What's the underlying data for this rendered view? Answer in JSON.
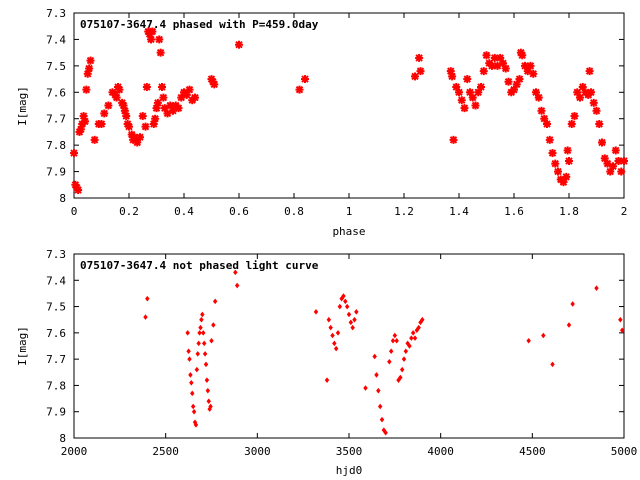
{
  "chart_data": [
    {
      "type": "scatter",
      "title": "075107-3647.4 phased with P=459.0day",
      "xlabel": "phase",
      "ylabel": "I[mag]",
      "xlim": [
        0,
        2
      ],
      "ylim": [
        8,
        7.3
      ],
      "y_inverted": true,
      "xticks": [
        "0",
        "0.2",
        "0.4",
        "0.6",
        "0.8",
        "1",
        "1.2",
        "1.4",
        "1.6",
        "1.8",
        "2"
      ],
      "yticks": [
        "7.3",
        "7.4",
        "7.5",
        "7.6",
        "7.7",
        "7.8",
        "7.9",
        "8"
      ],
      "marker_color": "#ff0000",
      "marker": "star",
      "grid": false,
      "series": [
        {
          "points": [
            [
              0.0,
              7.83
            ],
            [
              0.005,
              7.95
            ],
            [
              0.01,
              7.96
            ],
            [
              0.015,
              7.97
            ],
            [
              0.02,
              7.75
            ],
            [
              0.025,
              7.74
            ],
            [
              0.03,
              7.72
            ],
            [
              0.035,
              7.69
            ],
            [
              0.04,
              7.71
            ],
            [
              0.045,
              7.59
            ],
            [
              0.05,
              7.53
            ],
            [
              0.055,
              7.51
            ],
            [
              0.06,
              7.48
            ],
            [
              0.075,
              7.78
            ],
            [
              0.09,
              7.72
            ],
            [
              0.1,
              7.72
            ],
            [
              0.11,
              7.68
            ],
            [
              0.125,
              7.65
            ],
            [
              0.14,
              7.6
            ],
            [
              0.15,
              7.61
            ],
            [
              0.155,
              7.62
            ],
            [
              0.16,
              7.58
            ],
            [
              0.165,
              7.59
            ],
            [
              0.175,
              7.64
            ],
            [
              0.18,
              7.65
            ],
            [
              0.185,
              7.67
            ],
            [
              0.19,
              7.69
            ],
            [
              0.195,
              7.72
            ],
            [
              0.2,
              7.73
            ],
            [
              0.21,
              7.76
            ],
            [
              0.215,
              7.78
            ],
            [
              0.22,
              7.77
            ],
            [
              0.225,
              7.78
            ],
            [
              0.23,
              7.79
            ],
            [
              0.24,
              7.77
            ],
            [
              0.25,
              7.69
            ],
            [
              0.26,
              7.73
            ],
            [
              0.265,
              7.58
            ],
            [
              0.27,
              7.37
            ],
            [
              0.275,
              7.38
            ],
            [
              0.28,
              7.4
            ],
            [
              0.285,
              7.37
            ],
            [
              0.29,
              7.72
            ],
            [
              0.295,
              7.7
            ],
            [
              0.3,
              7.66
            ],
            [
              0.305,
              7.64
            ],
            [
              0.31,
              7.4
            ],
            [
              0.315,
              7.45
            ],
            [
              0.32,
              7.58
            ],
            [
              0.325,
              7.62
            ],
            [
              0.33,
              7.66
            ],
            [
              0.34,
              7.68
            ],
            [
              0.35,
              7.65
            ],
            [
              0.36,
              7.67
            ],
            [
              0.37,
              7.65
            ],
            [
              0.38,
              7.66
            ],
            [
              0.39,
              7.62
            ],
            [
              0.4,
              7.6
            ],
            [
              0.41,
              7.61
            ],
            [
              0.42,
              7.59
            ],
            [
              0.43,
              7.63
            ],
            [
              0.44,
              7.62
            ],
            [
              0.5,
              7.55
            ],
            [
              0.505,
              7.56
            ],
            [
              0.51,
              7.57
            ],
            [
              0.6,
              7.42
            ],
            [
              0.82,
              7.59
            ],
            [
              0.84,
              7.55
            ],
            [
              1.24,
              7.54
            ],
            [
              1.255,
              7.47
            ],
            [
              1.26,
              7.52
            ],
            [
              1.37,
              7.52
            ],
            [
              1.375,
              7.54
            ],
            [
              1.38,
              7.78
            ],
            [
              1.39,
              7.58
            ],
            [
              1.4,
              7.6
            ],
            [
              1.41,
              7.63
            ],
            [
              1.42,
              7.66
            ],
            [
              1.43,
              7.55
            ],
            [
              1.44,
              7.6
            ],
            [
              1.45,
              7.62
            ],
            [
              1.46,
              7.65
            ],
            [
              1.47,
              7.6
            ],
            [
              1.48,
              7.58
            ],
            [
              1.49,
              7.52
            ],
            [
              1.5,
              7.46
            ],
            [
              1.51,
              7.49
            ],
            [
              1.52,
              7.5
            ],
            [
              1.53,
              7.47
            ],
            [
              1.54,
              7.5
            ],
            [
              1.55,
              7.47
            ],
            [
              1.56,
              7.49
            ],
            [
              1.57,
              7.51
            ],
            [
              1.58,
              7.56
            ],
            [
              1.59,
              7.6
            ],
            [
              1.6,
              7.59
            ],
            [
              1.61,
              7.57
            ],
            [
              1.62,
              7.55
            ],
            [
              1.625,
              7.45
            ],
            [
              1.63,
              7.46
            ],
            [
              1.64,
              7.5
            ],
            [
              1.65,
              7.52
            ],
            [
              1.66,
              7.5
            ],
            [
              1.67,
              7.53
            ],
            [
              1.68,
              7.6
            ],
            [
              1.69,
              7.62
            ],
            [
              1.7,
              7.67
            ],
            [
              1.71,
              7.7
            ],
            [
              1.72,
              7.72
            ],
            [
              1.73,
              7.78
            ],
            [
              1.74,
              7.83
            ],
            [
              1.75,
              7.87
            ],
            [
              1.76,
              7.9
            ],
            [
              1.77,
              7.93
            ],
            [
              1.78,
              7.94
            ],
            [
              1.79,
              7.92
            ],
            [
              1.795,
              7.82
            ],
            [
              1.8,
              7.86
            ],
            [
              1.81,
              7.72
            ],
            [
              1.82,
              7.69
            ],
            [
              1.83,
              7.6
            ],
            [
              1.84,
              7.62
            ],
            [
              1.85,
              7.58
            ],
            [
              1.86,
              7.6
            ],
            [
              1.87,
              7.61
            ],
            [
              1.875,
              7.52
            ],
            [
              1.88,
              7.6
            ],
            [
              1.89,
              7.64
            ],
            [
              1.9,
              7.67
            ],
            [
              1.91,
              7.72
            ],
            [
              1.92,
              7.79
            ],
            [
              1.93,
              7.85
            ],
            [
              1.94,
              7.87
            ],
            [
              1.95,
              7.9
            ],
            [
              1.96,
              7.88
            ],
            [
              1.97,
              7.82
            ],
            [
              1.98,
              7.86
            ],
            [
              1.99,
              7.9
            ],
            [
              2.0,
              7.86
            ]
          ]
        }
      ]
    },
    {
      "type": "scatter",
      "title": "075107-3647.4 not phased light curve",
      "xlabel": "hjd0",
      "ylabel": "I[mag]",
      "xlim": [
        2000,
        5000
      ],
      "ylim": [
        8,
        7.3
      ],
      "y_inverted": true,
      "xticks": [
        "2000",
        "2500",
        "3000",
        "3500",
        "4000",
        "4500",
        "5000"
      ],
      "yticks": [
        "7.3",
        "7.4",
        "7.5",
        "7.6",
        "7.7",
        "7.8",
        "7.9",
        "8"
      ],
      "marker_color": "#ff0000",
      "marker": "diamond",
      "grid": false,
      "series": [
        {
          "points": [
            [
              2390,
              7.54
            ],
            [
              2400,
              7.47
            ],
            [
              2620,
              7.6
            ],
            [
              2625,
              7.67
            ],
            [
              2630,
              7.7
            ],
            [
              2635,
              7.76
            ],
            [
              2640,
              7.79
            ],
            [
              2645,
              7.83
            ],
            [
              2650,
              7.88
            ],
            [
              2655,
              7.9
            ],
            [
              2660,
              7.94
            ],
            [
              2665,
              7.95
            ],
            [
              2670,
              7.74
            ],
            [
              2675,
              7.68
            ],
            [
              2680,
              7.64
            ],
            [
              2685,
              7.6
            ],
            [
              2690,
              7.58
            ],
            [
              2695,
              7.55
            ],
            [
              2700,
              7.53
            ],
            [
              2705,
              7.6
            ],
            [
              2710,
              7.64
            ],
            [
              2715,
              7.68
            ],
            [
              2720,
              7.72
            ],
            [
              2725,
              7.78
            ],
            [
              2730,
              7.82
            ],
            [
              2735,
              7.86
            ],
            [
              2740,
              7.89
            ],
            [
              2745,
              7.88
            ],
            [
              2750,
              7.63
            ],
            [
              2760,
              7.57
            ],
            [
              2770,
              7.48
            ],
            [
              2880,
              7.37
            ],
            [
              2890,
              7.42
            ],
            [
              3320,
              7.52
            ],
            [
              3380,
              7.78
            ],
            [
              3390,
              7.55
            ],
            [
              3400,
              7.58
            ],
            [
              3410,
              7.61
            ],
            [
              3420,
              7.64
            ],
            [
              3430,
              7.66
            ],
            [
              3440,
              7.6
            ],
            [
              3450,
              7.5
            ],
            [
              3460,
              7.47
            ],
            [
              3470,
              7.46
            ],
            [
              3480,
              7.48
            ],
            [
              3490,
              7.5
            ],
            [
              3500,
              7.53
            ],
            [
              3510,
              7.56
            ],
            [
              3520,
              7.58
            ],
            [
              3530,
              7.55
            ],
            [
              3540,
              7.52
            ],
            [
              3590,
              7.81
            ],
            [
              3640,
              7.69
            ],
            [
              3650,
              7.76
            ],
            [
              3660,
              7.82
            ],
            [
              3670,
              7.88
            ],
            [
              3680,
              7.93
            ],
            [
              3690,
              7.97
            ],
            [
              3700,
              7.98
            ],
            [
              3720,
              7.71
            ],
            [
              3730,
              7.67
            ],
            [
              3740,
              7.63
            ],
            [
              3750,
              7.61
            ],
            [
              3760,
              7.63
            ],
            [
              3770,
              7.78
            ],
            [
              3780,
              7.77
            ],
            [
              3790,
              7.74
            ],
            [
              3800,
              7.7
            ],
            [
              3810,
              7.67
            ],
            [
              3820,
              7.64
            ],
            [
              3830,
              7.65
            ],
            [
              3840,
              7.62
            ],
            [
              3850,
              7.6
            ],
            [
              3860,
              7.62
            ],
            [
              3870,
              7.59
            ],
            [
              3880,
              7.58
            ],
            [
              3890,
              7.56
            ],
            [
              3900,
              7.55
            ],
            [
              4480,
              7.63
            ],
            [
              4560,
              7.61
            ],
            [
              4610,
              7.72
            ],
            [
              4700,
              7.57
            ],
            [
              4720,
              7.49
            ],
            [
              4850,
              7.43
            ],
            [
              4980,
              7.55
            ],
            [
              4990,
              7.59
            ]
          ]
        }
      ]
    }
  ]
}
